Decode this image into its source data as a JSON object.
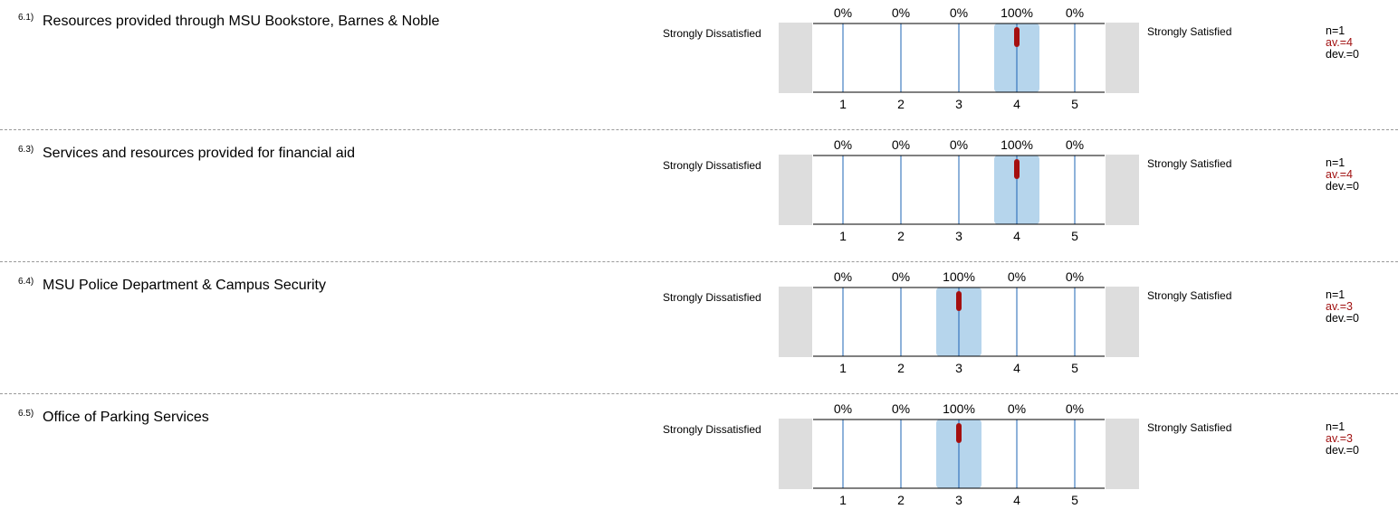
{
  "scale": {
    "left_label": "Strongly Dissatisfied",
    "right_label": "Strongly Satisfied",
    "ticks": [
      "1",
      "2",
      "3",
      "4",
      "5"
    ]
  },
  "colors": {
    "band": "#b6d5ec",
    "grid": "#1e64b4",
    "mean_marker": "#a50f0f",
    "end_box": "#dddddd",
    "av_text": "#a01010"
  },
  "chart_data": [
    {
      "type": "bar",
      "number": "6.1)",
      "question": "Resources provided through MSU Bookstore, Barnes & Noble",
      "categories": [
        "1",
        "2",
        "3",
        "4",
        "5"
      ],
      "percent_labels": [
        "0%",
        "0%",
        "0%",
        "100%",
        "0%"
      ],
      "values": [
        0,
        0,
        0,
        100,
        0
      ],
      "n_text": "n=1",
      "av_text": "av.=4",
      "dev_text": "dev.=0",
      "mean": 4
    },
    {
      "type": "bar",
      "number": "6.3)",
      "question": "Services and resources provided for financial aid",
      "categories": [
        "1",
        "2",
        "3",
        "4",
        "5"
      ],
      "percent_labels": [
        "0%",
        "0%",
        "0%",
        "100%",
        "0%"
      ],
      "values": [
        0,
        0,
        0,
        100,
        0
      ],
      "n_text": "n=1",
      "av_text": "av.=4",
      "dev_text": "dev.=0",
      "mean": 4
    },
    {
      "type": "bar",
      "number": "6.4)",
      "question": "MSU Police Department & Campus Security",
      "categories": [
        "1",
        "2",
        "3",
        "4",
        "5"
      ],
      "percent_labels": [
        "0%",
        "0%",
        "100%",
        "0%",
        "0%"
      ],
      "values": [
        0,
        0,
        100,
        0,
        0
      ],
      "n_text": "n=1",
      "av_text": "av.=3",
      "dev_text": "dev.=0",
      "mean": 3
    },
    {
      "type": "bar",
      "number": "6.5)",
      "question": "Office of Parking Services",
      "categories": [
        "1",
        "2",
        "3",
        "4",
        "5"
      ],
      "percent_labels": [
        "0%",
        "0%",
        "100%",
        "0%",
        "0%"
      ],
      "values": [
        0,
        0,
        100,
        0,
        0
      ],
      "n_text": "n=1",
      "av_text": "av.=3",
      "dev_text": "dev.=0",
      "mean": 3
    }
  ]
}
